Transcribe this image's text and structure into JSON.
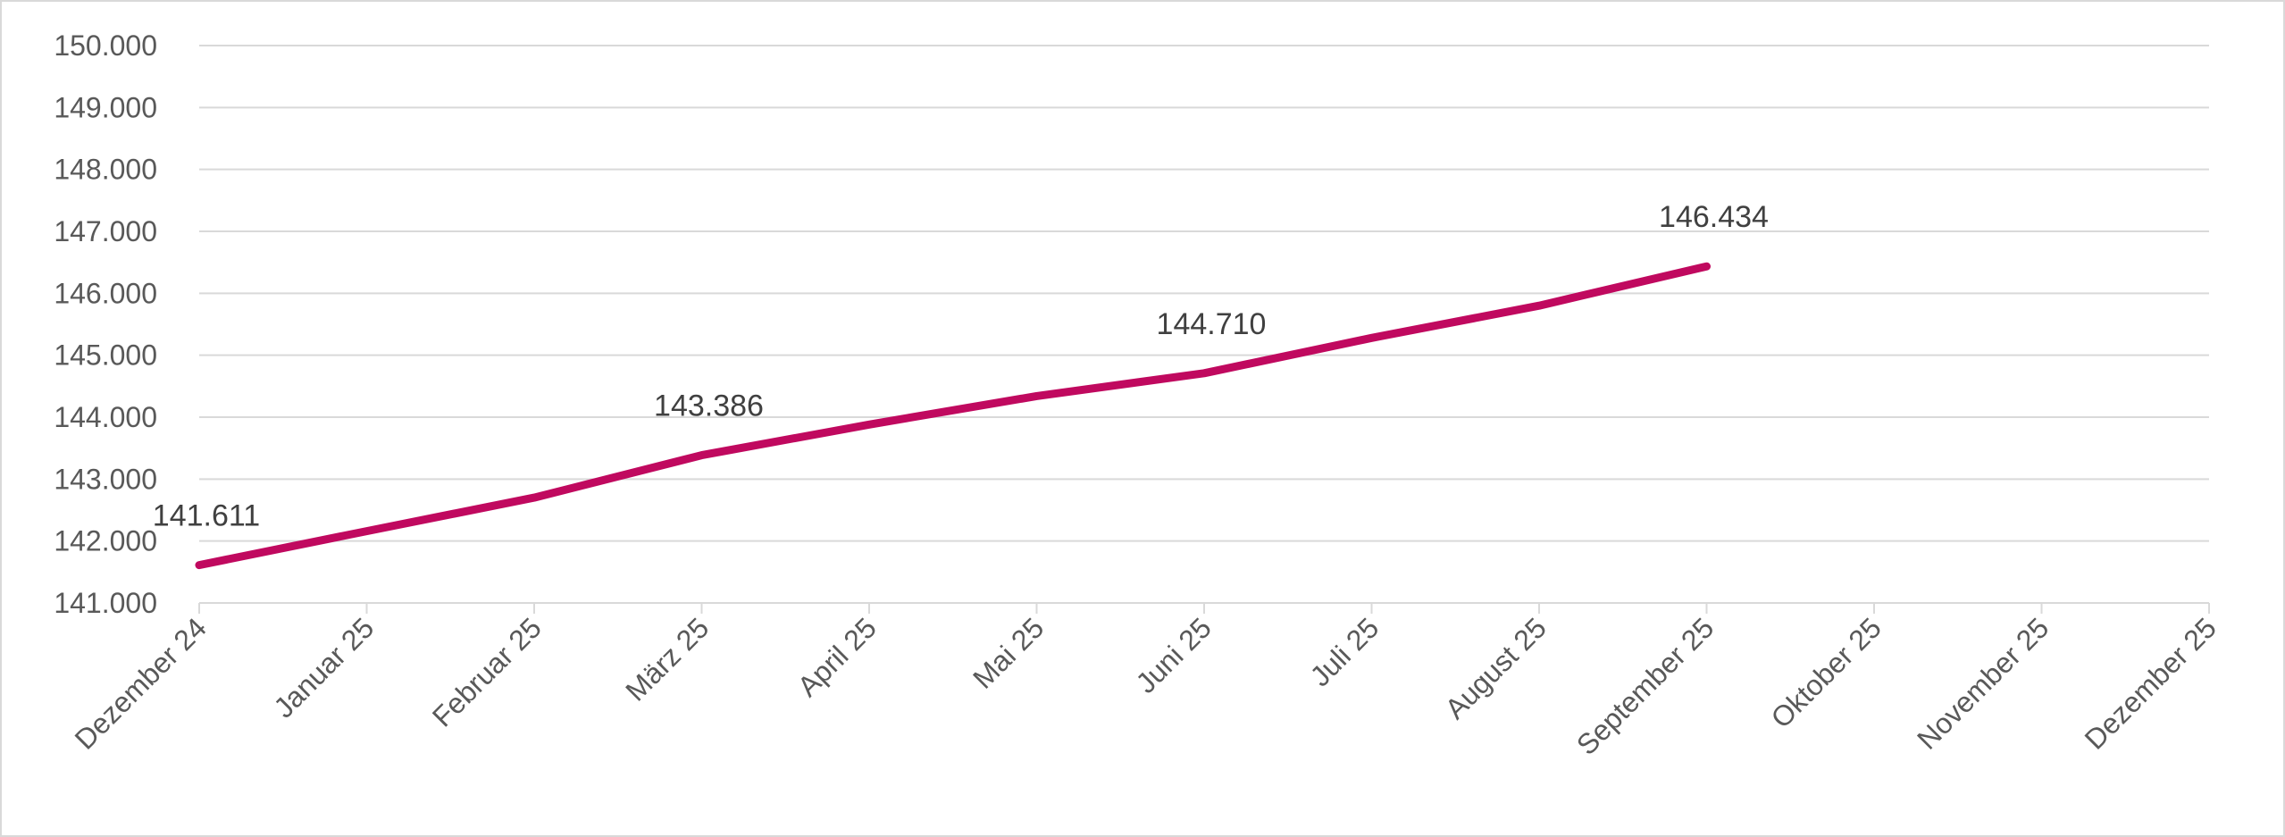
{
  "chart_data": {
    "type": "line",
    "title": "",
    "xlabel": "",
    "ylabel": "",
    "categories": [
      "Dezember 24",
      "Januar 25",
      "Februar 25",
      "März 25",
      "April 25",
      "Mai 25",
      "Juni 25",
      "Juli 25",
      "August 25",
      "September 25",
      "Oktober 25",
      "November 25",
      "Dezember 25"
    ],
    "series": [
      {
        "values": [
          141611,
          142160,
          142700,
          143386,
          143880,
          144340,
          144710,
          145280,
          145800,
          146434,
          null,
          null,
          null
        ],
        "color": "#C0095F"
      }
    ],
    "data_labels": [
      {
        "index": 0,
        "text": "141.611"
      },
      {
        "index": 3,
        "text": "143.386"
      },
      {
        "index": 6,
        "text": "144.710"
      },
      {
        "index": 9,
        "text": "146.434"
      }
    ],
    "y_ticks": [
      "141.000",
      "142.000",
      "143.000",
      "144.000",
      "145.000",
      "146.000",
      "147.000",
      "148.000",
      "149.000",
      "150.000"
    ],
    "ylim": [
      141000,
      150000
    ],
    "grid": true,
    "legend": "none"
  }
}
